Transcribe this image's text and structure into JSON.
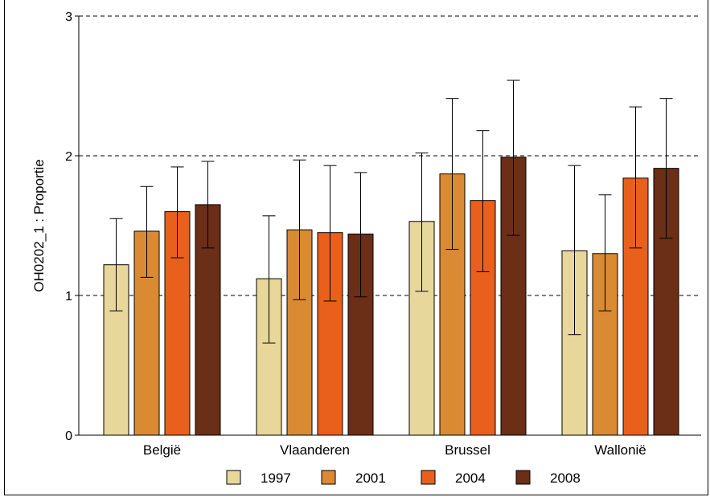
{
  "chart_data": {
    "type": "bar",
    "title": "",
    "ylabel": "OH0202_1 : Proportie",
    "xlabel": "",
    "ylim": [
      0,
      3
    ],
    "yticks": [
      0,
      1,
      2,
      3
    ],
    "grid": "horizontal-dashed",
    "legend_position": "bottom",
    "categories": [
      "België",
      "Vlaanderen",
      "Brussel",
      "Wallonië"
    ],
    "series": [
      {
        "name": "1997",
        "color": "#e8d79a",
        "values": [
          1.22,
          1.12,
          1.53,
          1.32
        ],
        "lower": [
          0.89,
          0.66,
          1.03,
          0.72
        ],
        "upper": [
          1.55,
          1.57,
          2.02,
          1.93
        ]
      },
      {
        "name": "2001",
        "color": "#d98a33",
        "values": [
          1.46,
          1.47,
          1.87,
          1.3
        ],
        "lower": [
          1.13,
          0.97,
          1.33,
          0.89
        ],
        "upper": [
          1.78,
          1.97,
          2.41,
          1.72
        ]
      },
      {
        "name": "2004",
        "color": "#e8601c",
        "values": [
          1.6,
          1.45,
          1.68,
          1.84
        ],
        "lower": [
          1.27,
          0.96,
          1.17,
          1.34
        ],
        "upper": [
          1.92,
          1.93,
          2.18,
          2.35
        ]
      },
      {
        "name": "2008",
        "color": "#6b2e16",
        "values": [
          1.65,
          1.44,
          1.99,
          1.91
        ],
        "lower": [
          1.34,
          0.99,
          1.43,
          1.41
        ],
        "upper": [
          1.96,
          1.88,
          2.54,
          2.41
        ]
      }
    ]
  }
}
